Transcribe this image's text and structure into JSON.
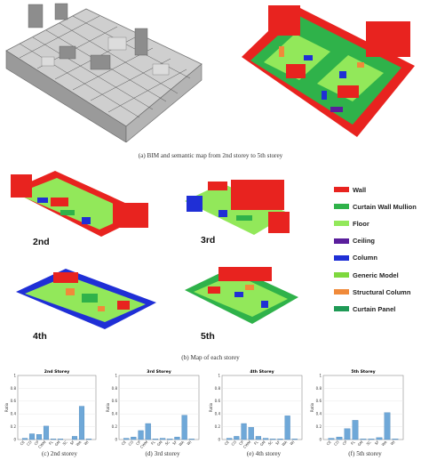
{
  "captions": {
    "a": "(a)  BIM and semantic map from 2nd storey to 5th storey",
    "b": "(b)  Map of each storey",
    "c": "(c)   2nd storey",
    "d": "(d)   3rd storey",
    "e": "(e)   4th storey",
    "f": "(f)   5th storey"
  },
  "storeys": [
    "2nd",
    "3rd",
    "4th",
    "5th"
  ],
  "legend": [
    {
      "label": "Wall",
      "color": "#e8231f"
    },
    {
      "label": "Curtain Wall  Mullion",
      "color": "#2fb24a"
    },
    {
      "label": "Floor",
      "color": "#92e85a"
    },
    {
      "label": "Ceiling",
      "color": "#5a1e9c"
    },
    {
      "label": "Column",
      "color": "#1f2fd6"
    },
    {
      "label": "Generic Model",
      "color": "#7ed83e"
    },
    {
      "label": "Structural Column",
      "color": "#f08a3a"
    },
    {
      "label": "Curtain Panel",
      "color": "#1f9a56"
    }
  ],
  "colors": {
    "bar": "#6fa8d8",
    "bar_edge": "#3a78b0"
  },
  "chart_data": [
    {
      "type": "bar",
      "title": "2nd Storey",
      "ylabel": "Ratio",
      "ylim": [
        0,
        1
      ],
      "yticks": [
        "0",
        "0.2",
        "0.4",
        "0.6",
        "0.8",
        "1"
      ],
      "categories": [
        "CE",
        "CO",
        "CP",
        "CWM",
        "FL",
        "GM",
        "SC",
        "SF",
        "WA",
        "WI"
      ],
      "values": [
        0.02,
        0.09,
        0.08,
        0.21,
        0.01,
        0.01,
        0.0,
        0.05,
        0.52,
        0.01
      ]
    },
    {
      "type": "bar",
      "title": "3rd Storey",
      "ylabel": "Ratio",
      "ylim": [
        0,
        1
      ],
      "yticks": [
        "0",
        "0.2",
        "0.4",
        "0.6",
        "0.8",
        "1"
      ],
      "categories": [
        "CE",
        "CO",
        "CP",
        "CWM",
        "FL",
        "GM",
        "SC",
        "SF",
        "WA",
        "WI"
      ],
      "values": [
        0.02,
        0.04,
        0.14,
        0.25,
        0.01,
        0.02,
        0.01,
        0.04,
        0.38,
        0.01
      ]
    },
    {
      "type": "bar",
      "title": "4th Storey",
      "ylabel": "Ratio",
      "ylim": [
        0,
        1
      ],
      "yticks": [
        "0",
        "0.2",
        "0.4",
        "0.6",
        "0.8",
        "1"
      ],
      "categories": [
        "CE",
        "CO",
        "CP",
        "CWM",
        "FL",
        "GM",
        "SC",
        "SF",
        "WA",
        "WI"
      ],
      "values": [
        0.02,
        0.05,
        0.25,
        0.19,
        0.05,
        0.02,
        0.01,
        0.01,
        0.37,
        0.01
      ]
    },
    {
      "type": "bar",
      "title": "5th Storey",
      "ylabel": "Ratio",
      "ylim": [
        0,
        1
      ],
      "yticks": [
        "0",
        "0.2",
        "0.4",
        "0.6",
        "0.8",
        "1"
      ],
      "categories": [
        "CE",
        "CO",
        "CP",
        "FL",
        "GM",
        "SC",
        "SF",
        "WA",
        "WI"
      ],
      "values": [
        0.02,
        0.04,
        0.17,
        0.3,
        0.01,
        0.01,
        0.03,
        0.42,
        0.01
      ]
    }
  ]
}
